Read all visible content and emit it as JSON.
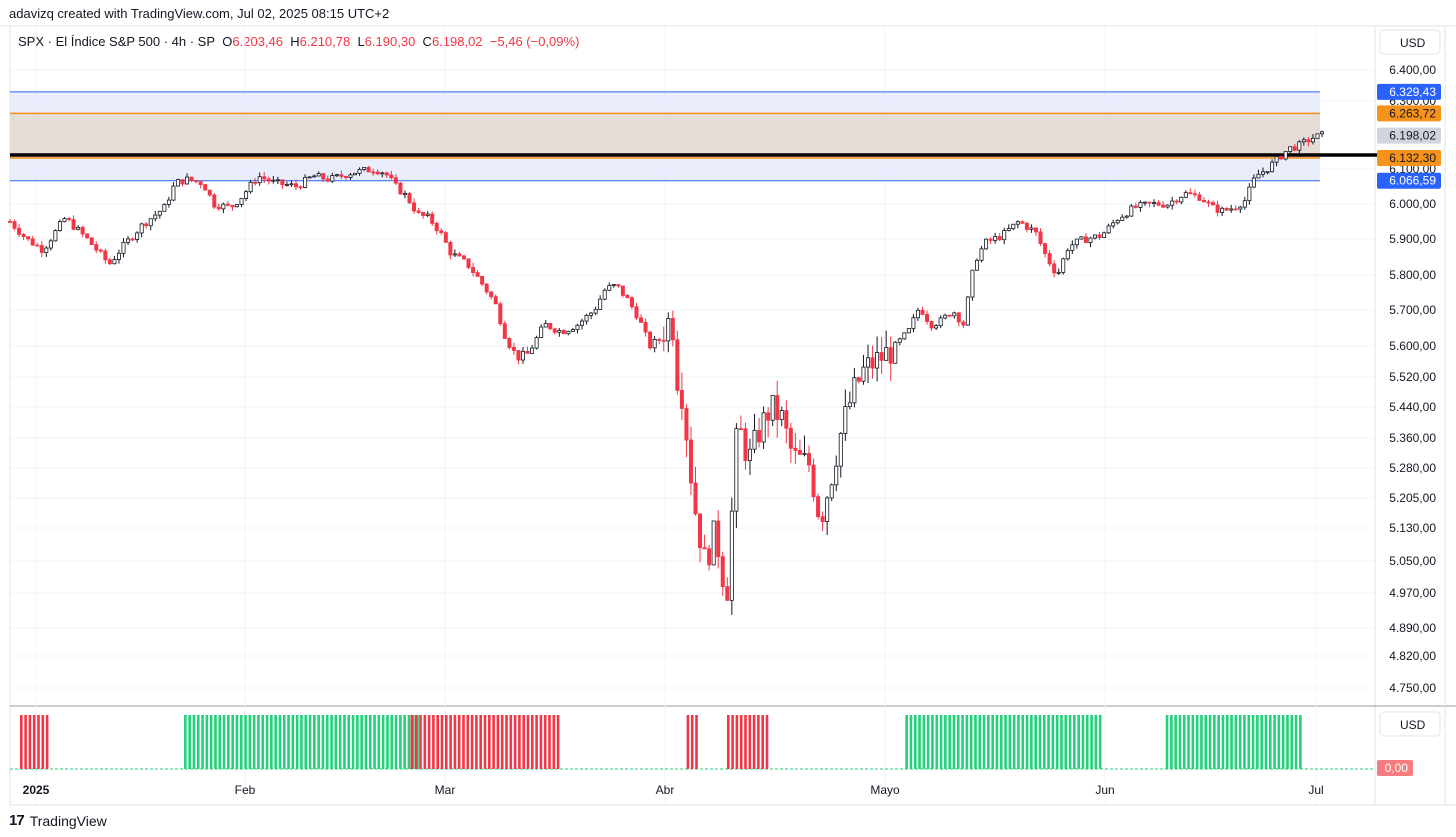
{
  "header": {
    "caption": "adavizq created with TradingView.com, Jul 02, 2025 08:15 UTC+2"
  },
  "legend": {
    "symbol": "SPX · El Índice S&P 500 · 4h · SP",
    "o_label": "O",
    "o_value": "6.203,46",
    "h_label": "H",
    "h_value": "6.210,78",
    "l_label": "L",
    "l_value": "6.190,30",
    "c_label": "C",
    "c_value": "6.198,02",
    "change": "−5,46 (−0,09%)"
  },
  "colors": {
    "up": "#131722",
    "down": "#f23645",
    "green": "#22d17a",
    "blue": "#2962ff",
    "orange": "#f7931a",
    "zone_fill": "#e6d9d3",
    "blue_fill": "#e3e8fb"
  },
  "chart_data": {
    "type": "candlestick",
    "currency_label": "USD",
    "ylim": [
      4700,
      6440
    ],
    "y_ticks": [
      "6.400,00",
      "6.300,00",
      "6.100,00",
      "6.000,00",
      "5.900,00",
      "5.800,00",
      "5.700,00",
      "5.600,00",
      "5.520,00",
      "5.440,00",
      "5.360,00",
      "5.280,00",
      "5.205,00",
      "5.130,00",
      "5.050,00",
      "4.970,00",
      "4.890,00",
      "4.820,00",
      "4.750,00"
    ],
    "y_tick_values": [
      6400,
      6300,
      6100,
      6000,
      5900,
      5800,
      5700,
      5600,
      5520,
      5440,
      5360,
      5280,
      5205,
      5130,
      5050,
      4970,
      4890,
      4820,
      4750
    ],
    "x_labels": [
      "2025",
      "Feb",
      "Mar",
      "Abr",
      "Mayo",
      "Jun",
      "Jul"
    ],
    "horizontal_levels": [
      {
        "label": "6.329,43",
        "value": 6329.43,
        "color": "#2962ff",
        "badge": "#2962ff"
      },
      {
        "label": "6.263,72",
        "value": 6263.72,
        "color": "#f7931a",
        "badge": "#f7931a"
      },
      {
        "label": "6.198,02",
        "value": 6198.02,
        "color": "#d1d4dc",
        "badge": "#d1d4dc"
      },
      {
        "label": "6.132,30",
        "value": 6132.3,
        "color": "#f7931a",
        "badge": "#f7931a"
      },
      {
        "label": "6.066,59",
        "value": 6066.59,
        "color": "#2962ff",
        "badge": "#2962ff"
      }
    ],
    "price_path": [
      [
        0,
        5950
      ],
      [
        3,
        5900
      ],
      [
        6,
        5870
      ],
      [
        10,
        5960
      ],
      [
        14,
        5900
      ],
      [
        18,
        5830
      ],
      [
        20,
        5870
      ],
      [
        24,
        5940
      ],
      [
        28,
        5990
      ],
      [
        30,
        6060
      ],
      [
        32,
        6070
      ],
      [
        35,
        6060
      ],
      [
        37,
        6000
      ],
      [
        40,
        5990
      ],
      [
        42,
        6020
      ],
      [
        45,
        6080
      ],
      [
        48,
        6060
      ],
      [
        52,
        6050
      ],
      [
        55,
        6080
      ],
      [
        58,
        6070
      ],
      [
        62,
        6090
      ],
      [
        66,
        6100
      ],
      [
        68,
        6090
      ],
      [
        70,
        6050
      ],
      [
        72,
        6020
      ],
      [
        74,
        5970
      ],
      [
        76,
        5960
      ],
      [
        78,
        5920
      ],
      [
        80,
        5860
      ],
      [
        83,
        5830
      ],
      [
        85,
        5790
      ],
      [
        88,
        5720
      ],
      [
        90,
        5620
      ],
      [
        92,
        5570
      ],
      [
        94,
        5580
      ],
      [
        97,
        5660
      ],
      [
        100,
        5640
      ],
      [
        103,
        5660
      ],
      [
        106,
        5700
      ],
      [
        108,
        5760
      ],
      [
        110,
        5770
      ],
      [
        112,
        5730
      ],
      [
        114,
        5680
      ],
      [
        116,
        5600
      ],
      [
        118,
        5620
      ],
      [
        120,
        5690
      ],
      [
        121,
        5520
      ],
      [
        122,
        5470
      ],
      [
        124,
        5200
      ],
      [
        126,
        5050
      ],
      [
        128,
        5120
      ],
      [
        130,
        4960
      ],
      [
        132,
        5400
      ],
      [
        134,
        5300
      ],
      [
        136,
        5380
      ],
      [
        138,
        5440
      ],
      [
        140,
        5410
      ],
      [
        142,
        5310
      ],
      [
        145,
        5290
      ],
      [
        147,
        5150
      ],
      [
        149,
        5260
      ],
      [
        151,
        5390
      ],
      [
        153,
        5480
      ],
      [
        155,
        5540
      ],
      [
        157,
        5560
      ],
      [
        160,
        5590
      ],
      [
        163,
        5640
      ],
      [
        165,
        5710
      ],
      [
        167,
        5660
      ],
      [
        169,
        5670
      ],
      [
        171,
        5700
      ],
      [
        173,
        5660
      ],
      [
        175,
        5840
      ],
      [
        177,
        5890
      ],
      [
        180,
        5910
      ],
      [
        183,
        5950
      ],
      [
        186,
        5920
      ],
      [
        188,
        5850
      ],
      [
        190,
        5800
      ],
      [
        192,
        5880
      ],
      [
        195,
        5900
      ],
      [
        198,
        5910
      ],
      [
        201,
        5960
      ],
      [
        204,
        5990
      ],
      [
        207,
        6000
      ],
      [
        210,
        6000
      ],
      [
        213,
        6030
      ],
      [
        216,
        6020
      ],
      [
        218,
        5990
      ],
      [
        220,
        5980
      ],
      [
        222,
        5990
      ],
      [
        224,
        6010
      ],
      [
        226,
        6080
      ],
      [
        228,
        6100
      ],
      [
        230,
        6130
      ],
      [
        232,
        6160
      ],
      [
        234,
        6170
      ],
      [
        236,
        6190
      ],
      [
        238,
        6200
      ]
    ],
    "indicator": {
      "label": "USD",
      "value_label": "0,00",
      "segments": [
        {
          "from": 0.0,
          "to": 0.022,
          "signal": "red"
        },
        {
          "from": 0.126,
          "to": 0.306,
          "signal": "green"
        },
        {
          "from": 0.3,
          "to": 0.415,
          "signal": "red"
        },
        {
          "from": 0.512,
          "to": 0.52,
          "signal": "red"
        },
        {
          "from": 0.543,
          "to": 0.574,
          "signal": "red"
        },
        {
          "from": 0.68,
          "to": 0.83,
          "signal": "green"
        },
        {
          "from": 0.88,
          "to": 0.985,
          "signal": "green"
        },
        {
          "from": 1.02,
          "to": 1.07,
          "signal": "green"
        }
      ]
    }
  },
  "footer": {
    "brand": "TradingView"
  }
}
